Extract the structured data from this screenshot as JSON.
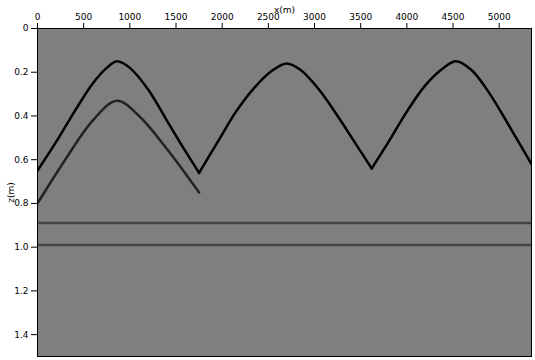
{
  "chart_data": {
    "type": "line",
    "x_label": "x(m)",
    "y_label": "z(m)",
    "xlim": [
      0,
      5350
    ],
    "xticks": [
      0,
      500,
      1000,
      1500,
      2000,
      2500,
      3000,
      3500,
      4000,
      4500,
      5000
    ],
    "ylim": [
      0,
      1.5
    ],
    "yticks": [
      0,
      0.2,
      0.4,
      0.6,
      0.8,
      {
        "value": 1,
        "label": "1.0"
      },
      1.2,
      1.4
    ],
    "grid": false,
    "series": [
      {
        "color": "#000000",
        "x": [
          0,
          200,
          400,
          600,
          750,
          860,
          1000,
          1200,
          1400,
          1600,
          1750
        ],
        "values": [
          0.65,
          0.52,
          0.38,
          0.25,
          0.18,
          0.15,
          0.18,
          0.28,
          0.42,
          0.56,
          0.66
        ]
      },
      {
        "color": "#222222",
        "x": [
          0,
          300,
          600,
          860,
          1100,
          1400,
          1750
        ],
        "values": [
          0.8,
          0.6,
          0.42,
          0.33,
          0.4,
          0.55,
          0.75
        ]
      },
      {
        "color": "#000000",
        "x": [
          1750,
          1950,
          2150,
          2350,
          2550,
          2700,
          2850,
          3050,
          3250,
          3450,
          3620
        ],
        "values": [
          0.66,
          0.52,
          0.38,
          0.27,
          0.19,
          0.16,
          0.19,
          0.28,
          0.4,
          0.53,
          0.64
        ]
      },
      {
        "color": "#000000",
        "x": [
          3620,
          3800,
          4000,
          4200,
          4400,
          4530,
          4700,
          4900,
          5100,
          5350
        ],
        "values": [
          0.64,
          0.52,
          0.38,
          0.26,
          0.18,
          0.15,
          0.19,
          0.3,
          0.44,
          0.62
        ]
      },
      {
        "color": "#444444",
        "x": [
          0,
          5350
        ],
        "values": [
          0.89,
          0.89
        ]
      },
      {
        "color": "#444444",
        "x": [
          0,
          5350
        ],
        "values": [
          0.99,
          0.99
        ]
      }
    ]
  }
}
